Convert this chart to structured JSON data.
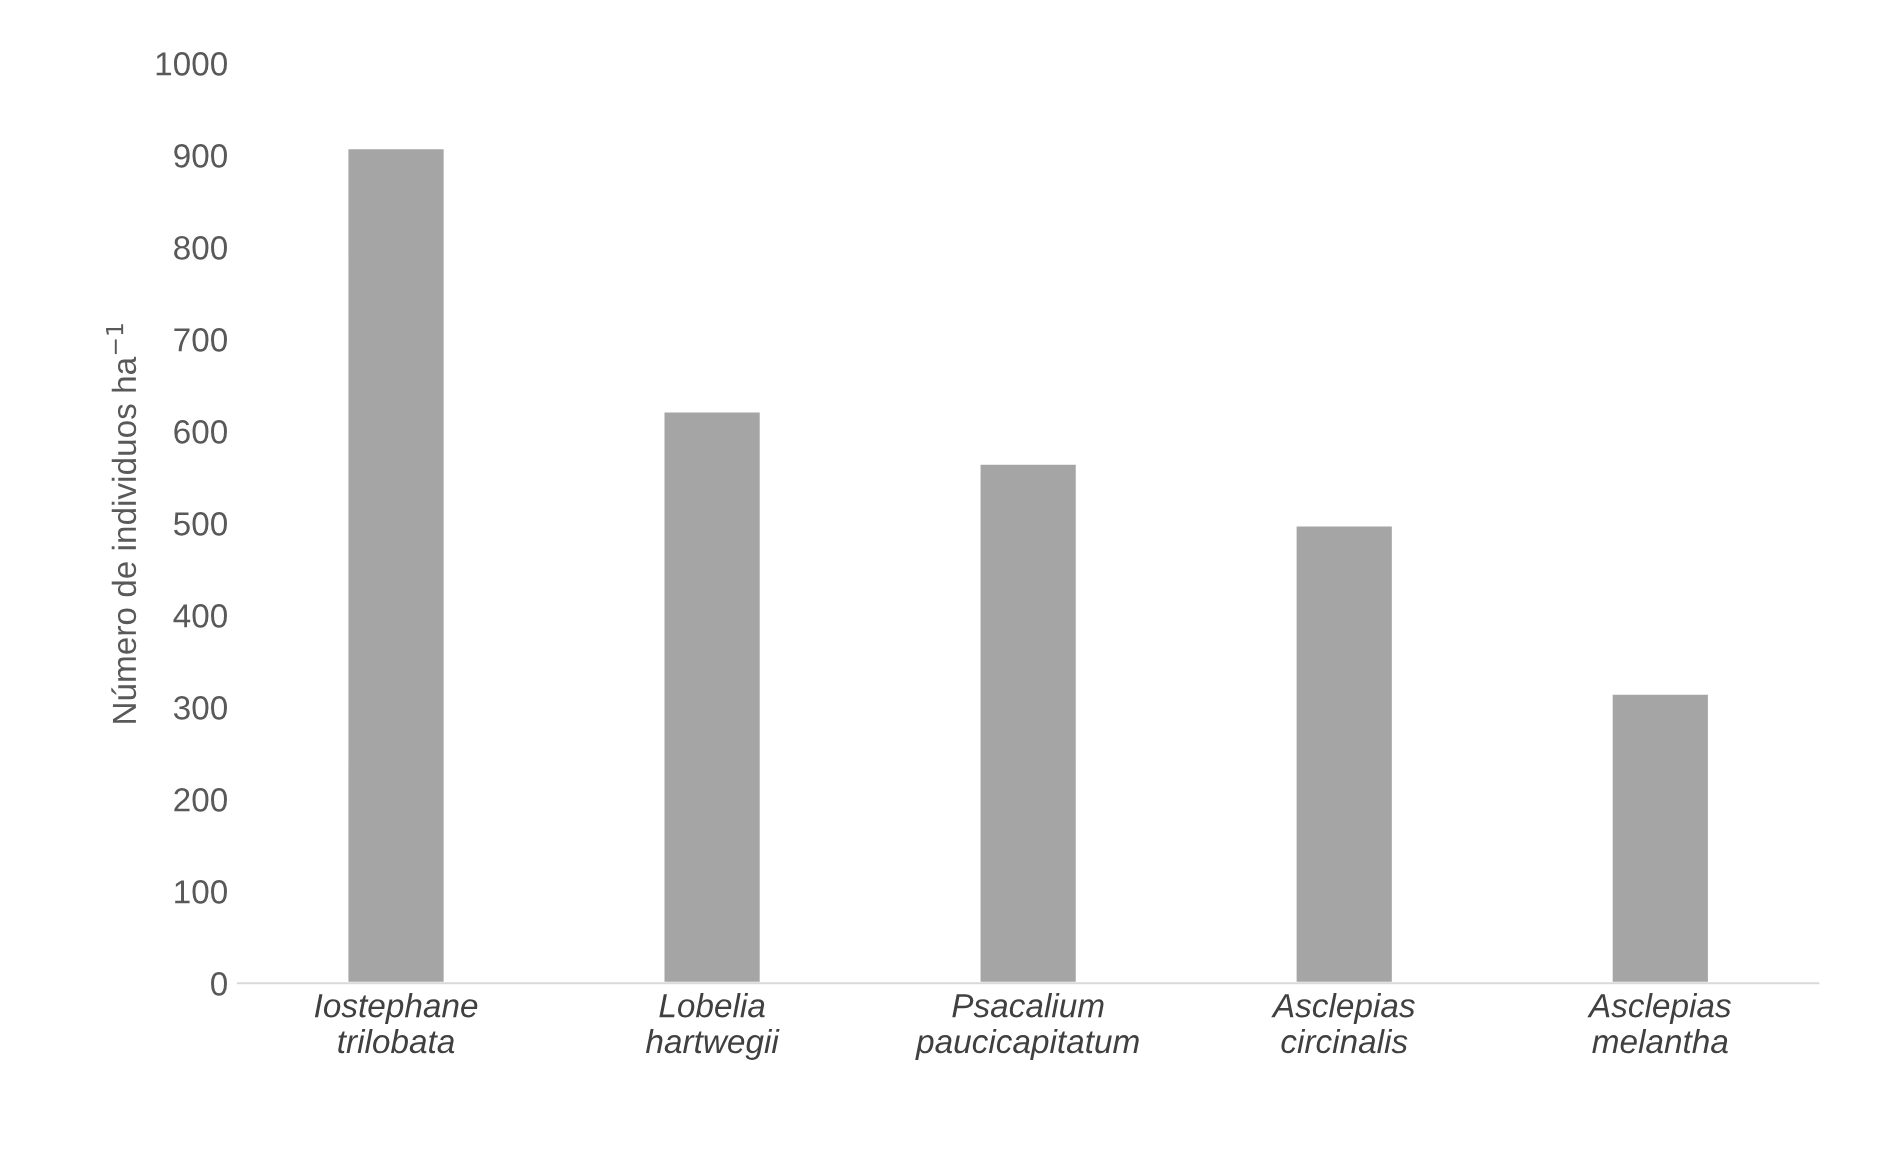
{
  "chart_data": {
    "type": "bar",
    "ylabel": "Número de individuos ha$^{−1}$",
    "categories": [
      "Iostephane\ntrilobata",
      "Lobelia\nhartwegii",
      "Psacalium\npaucicapitatum",
      "Asclepias\ncircinalis",
      "Asclepias\nmelantha"
    ],
    "values": [
      908,
      622,
      565,
      498,
      315
    ],
    "color": "#a5a5a5",
    "ylim": [
      0,
      1000
    ],
    "yticks": [
      0,
      100,
      200,
      300,
      400,
      500,
      600,
      700,
      800,
      900,
      1000
    ],
    "grid": false
  }
}
